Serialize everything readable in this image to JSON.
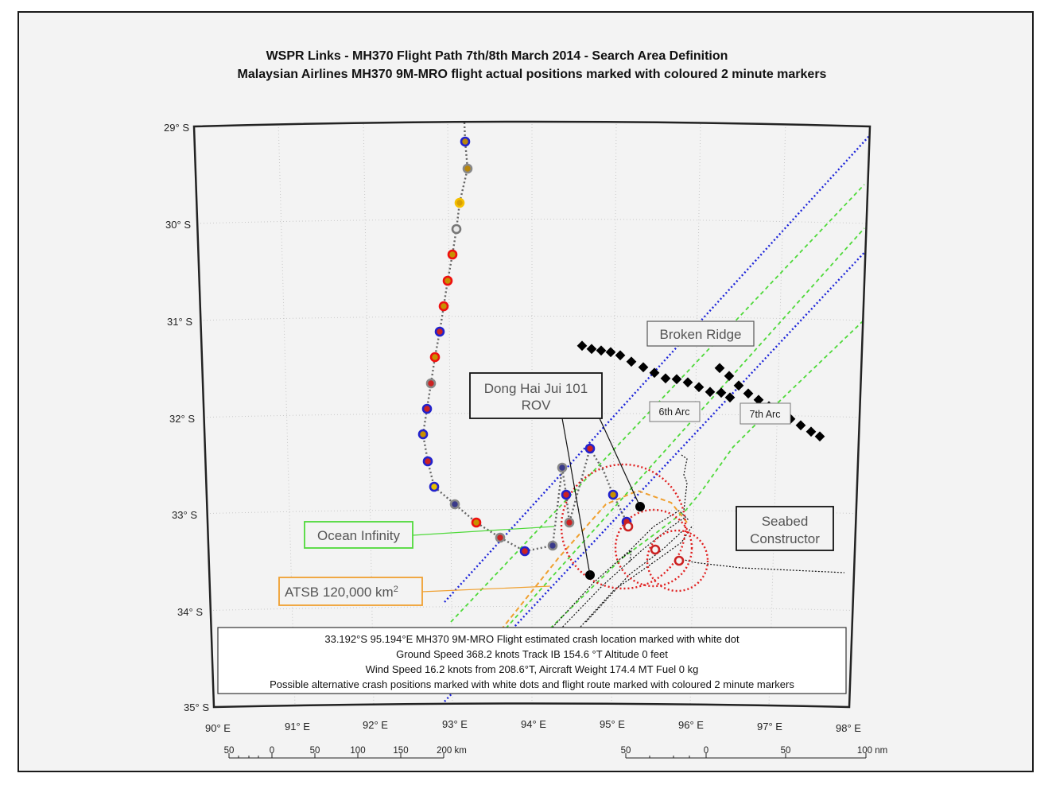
{
  "title": {
    "line1": "WSPR Links - MH370 Flight Path 7th/8th March 2014 - Search Area Definition",
    "line2": "Malaysian Airlines MH370 9M-MRO flight actual positions marked with coloured 2 minute markers"
  },
  "latitude_labels": [
    "29° S",
    "30° S",
    "31° S",
    "32° S",
    "33° S",
    "34° S",
    "35° S"
  ],
  "longitude_labels": [
    "90° E",
    "91° E",
    "92° E",
    "93° E",
    "94° E",
    "95° E",
    "96° E",
    "97° E",
    "98° E"
  ],
  "scale_km": {
    "ticks": [
      "50",
      "0",
      "50",
      "100",
      "150",
      "200 km"
    ]
  },
  "scale_nm": {
    "ticks": [
      "50",
      "0",
      "50",
      "100 nm"
    ]
  },
  "annotations": {
    "broken_ridge": "Broken Ridge",
    "dong_hai_line1": "Dong Hai Jui 101",
    "dong_hai_line2": "ROV",
    "sixth_arc": "6th Arc",
    "seventh_arc": "7th Arc",
    "seabed_line1": "Seabed",
    "seabed_line2": "Constructor",
    "ocean_infinity": "Ocean Infinity",
    "atsb_text": "ATSB 120,000 km",
    "atsb_sup": "2"
  },
  "info_box": {
    "line1": "33.192°S 95.194°E MH370 9M-MRO Flight estimated crash location marked with white dot",
    "line2": "Ground Speed 368.2 knots Track IB 154.6 °T Altitude 0 feet",
    "line3": "Wind Speed 16.2 knots from 208.6°T, Aircraft Weight 174.4 MT Fuel 0 kg",
    "line4": "Possible alternative crash positions marked with white dots and flight route marked with coloured 2 minute markers"
  },
  "colors": {
    "frame_bg": "#f3f3f3",
    "flight_path": "#666666",
    "arc_line": "#1c24d9",
    "ocean_infinity": "#4fd93a",
    "atsb": "#f0a030",
    "ship_circles": "#e02020",
    "broken_ridge": "#000000"
  }
}
